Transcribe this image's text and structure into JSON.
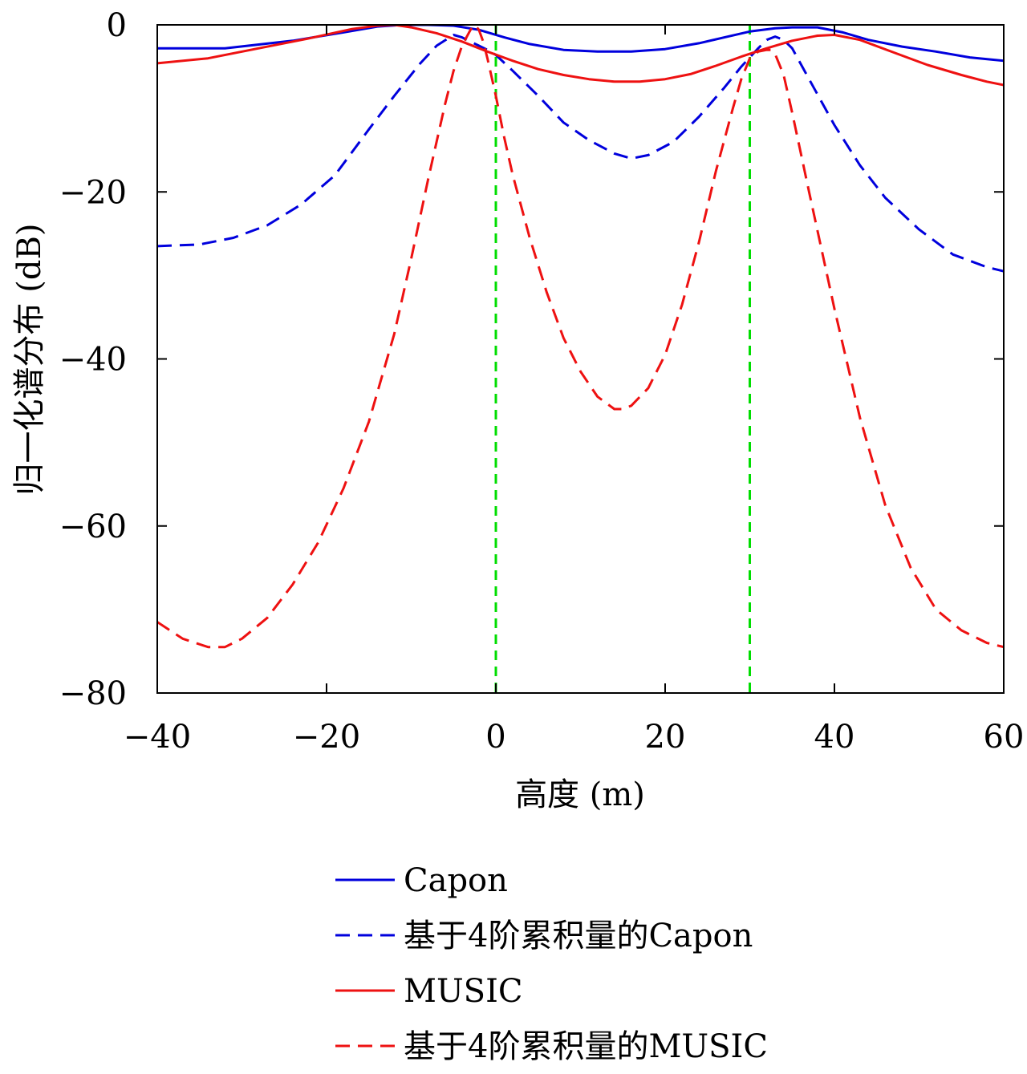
{
  "chart_data": {
    "type": "line",
    "title": "",
    "xlabel": "高度 (m)",
    "ylabel": "归一化谱分布 (dB)",
    "xlim": [
      -40,
      60
    ],
    "ylim": [
      -80,
      0
    ],
    "xticks": [
      -40,
      -20,
      0,
      20,
      40,
      60
    ],
    "yticks": [
      0,
      -20,
      -40,
      -60,
      -80
    ],
    "xtick_labels": [
      "−40",
      "−20",
      "0",
      "20",
      "40",
      "60"
    ],
    "ytick_labels": [
      "0",
      "−20",
      "−40",
      "−60",
      "−80"
    ],
    "grid": false,
    "legend_position": "bottom",
    "reference_lines": [
      {
        "x": 0,
        "color": "#00dd00",
        "style": "dashed"
      },
      {
        "x": 30,
        "color": "#00dd00",
        "style": "dashed"
      }
    ],
    "series": [
      {
        "name": "Capon",
        "color": "#0000dd",
        "style": "solid",
        "x": [
          -40,
          -32,
          -24,
          -18,
          -14,
          -11,
          -8,
          -5,
          -2,
          1,
          4,
          8,
          12,
          16,
          20,
          24,
          27,
          30,
          33,
          35,
          38,
          41,
          44,
          48,
          52,
          56,
          60
        ],
        "y": [
          -2.8,
          -2.8,
          -1.9,
          -0.9,
          -0.2,
          0.0,
          0.0,
          -0.1,
          -0.6,
          -1.5,
          -2.3,
          -3.0,
          -3.2,
          -3.2,
          -2.9,
          -2.2,
          -1.5,
          -0.8,
          -0.4,
          -0.3,
          -0.3,
          -0.9,
          -1.8,
          -2.6,
          -3.2,
          -3.9,
          -4.3
        ]
      },
      {
        "name": "基于4阶累积量的Capon",
        "color": "#0000dd",
        "style": "dashed",
        "x": [
          -40,
          -35,
          -31,
          -27,
          -23,
          -19,
          -15,
          -12,
          -9,
          -7,
          -5,
          -4,
          -3,
          -2,
          -1,
          0,
          2,
          5,
          8,
          11,
          14,
          16,
          18,
          21,
          24,
          27,
          29,
          31,
          32,
          33,
          34,
          35,
          37,
          40,
          43,
          46,
          50,
          54,
          58,
          60
        ],
        "y": [
          -26.5,
          -26.3,
          -25.5,
          -24.0,
          -21.5,
          -18.0,
          -12.5,
          -8.5,
          -4.7,
          -2.5,
          -1.2,
          -1.5,
          -2.0,
          -2.5,
          -3.0,
          -3.6,
          -5.5,
          -8.5,
          -11.7,
          -13.8,
          -15.4,
          -16.0,
          -15.6,
          -14.0,
          -11.0,
          -7.5,
          -5.0,
          -2.8,
          -1.8,
          -1.4,
          -1.8,
          -2.8,
          -6.5,
          -12.0,
          -16.8,
          -20.7,
          -24.5,
          -27.5,
          -29.0,
          -29.5
        ]
      },
      {
        "name": "MUSIC",
        "color": "#ee1111",
        "style": "solid",
        "x": [
          -40,
          -34,
          -28,
          -22,
          -17,
          -14,
          -12,
          -10,
          -7,
          -4,
          -1,
          2,
          5,
          8,
          11,
          14,
          17,
          20,
          23,
          26,
          29,
          32,
          35,
          38,
          40,
          43,
          47,
          51,
          55,
          58,
          60
        ],
        "y": [
          -4.6,
          -4.0,
          -2.8,
          -1.6,
          -0.5,
          -0.1,
          0.0,
          -0.3,
          -1.0,
          -2.0,
          -3.2,
          -4.3,
          -5.3,
          -6.0,
          -6.5,
          -6.8,
          -6.8,
          -6.5,
          -5.9,
          -4.9,
          -3.8,
          -2.8,
          -1.9,
          -1.3,
          -1.2,
          -1.8,
          -3.3,
          -4.8,
          -6.0,
          -6.8,
          -7.2
        ]
      },
      {
        "name": "基于4阶累积量的MUSIC",
        "color": "#ee1111",
        "style": "dashed",
        "x": [
          -40,
          -37,
          -34,
          -32,
          -30,
          -27,
          -24,
          -21,
          -18,
          -15,
          -12,
          -10,
          -8,
          -6,
          -5,
          -4,
          -3,
          -2.5,
          -2,
          -1.5,
          -1,
          0,
          1,
          2,
          4,
          6,
          8,
          10,
          12,
          14,
          15,
          16,
          18,
          20,
          22,
          24,
          26,
          28,
          29,
          30,
          31,
          32,
          32.5,
          33,
          34,
          35,
          37,
          40,
          43,
          46,
          49,
          52,
          55,
          58,
          60
        ],
        "y": [
          -71.5,
          -73.5,
          -74.5,
          -74.5,
          -73.5,
          -71.0,
          -67.0,
          -62.0,
          -55.5,
          -47.5,
          -37.0,
          -28.0,
          -18.5,
          -9.5,
          -5.5,
          -2.5,
          -0.6,
          0.0,
          -0.6,
          -2.0,
          -4.0,
          -8.5,
          -13.5,
          -18.0,
          -25.5,
          -32.0,
          -37.5,
          -41.5,
          -44.5,
          -46.0,
          -46.0,
          -45.6,
          -43.5,
          -39.5,
          -33.5,
          -26.0,
          -17.5,
          -10.0,
          -6.5,
          -4.0,
          -3.2,
          -3.0,
          -3.0,
          -3.5,
          -6.0,
          -10.5,
          -20.0,
          -34.0,
          -47.0,
          -57.5,
          -65.0,
          -70.0,
          -72.5,
          -74.0,
          -74.5
        ]
      }
    ]
  }
}
